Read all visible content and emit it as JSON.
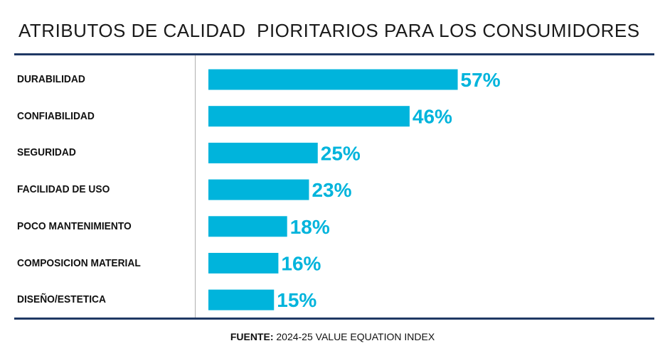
{
  "chart_data": {
    "type": "bar",
    "orientation": "horizontal",
    "title": "ATRIBUTOS DE CALIDAD  PIORITARIOS PARA LOS CONSUMIDORES",
    "categories": [
      "DURABILIDAD",
      "CONFIABILIDAD",
      "SEGURIDAD",
      "FACILIDAD DE USO",
      "POCO MANTENIMIENTO",
      "COMPOSICION MATERIAL",
      "DISEÑO/ESTETICA"
    ],
    "values": [
      57,
      46,
      25,
      23,
      18,
      16,
      15
    ],
    "value_labels": [
      "57%",
      "46%",
      "25%",
      "23%",
      "18%",
      "16%",
      "15%"
    ],
    "xlim": [
      0,
      100
    ],
    "bar_color": "#00b4dc",
    "label_color": "#00b4dc",
    "grid": false
  },
  "source": {
    "prefix": "FUENTE:",
    "text": "2024-25 VALUE EQUATION INDEX"
  },
  "colors": {
    "rule": "#1f3864",
    "axis": "#b0b0b0",
    "text": "#111111"
  }
}
